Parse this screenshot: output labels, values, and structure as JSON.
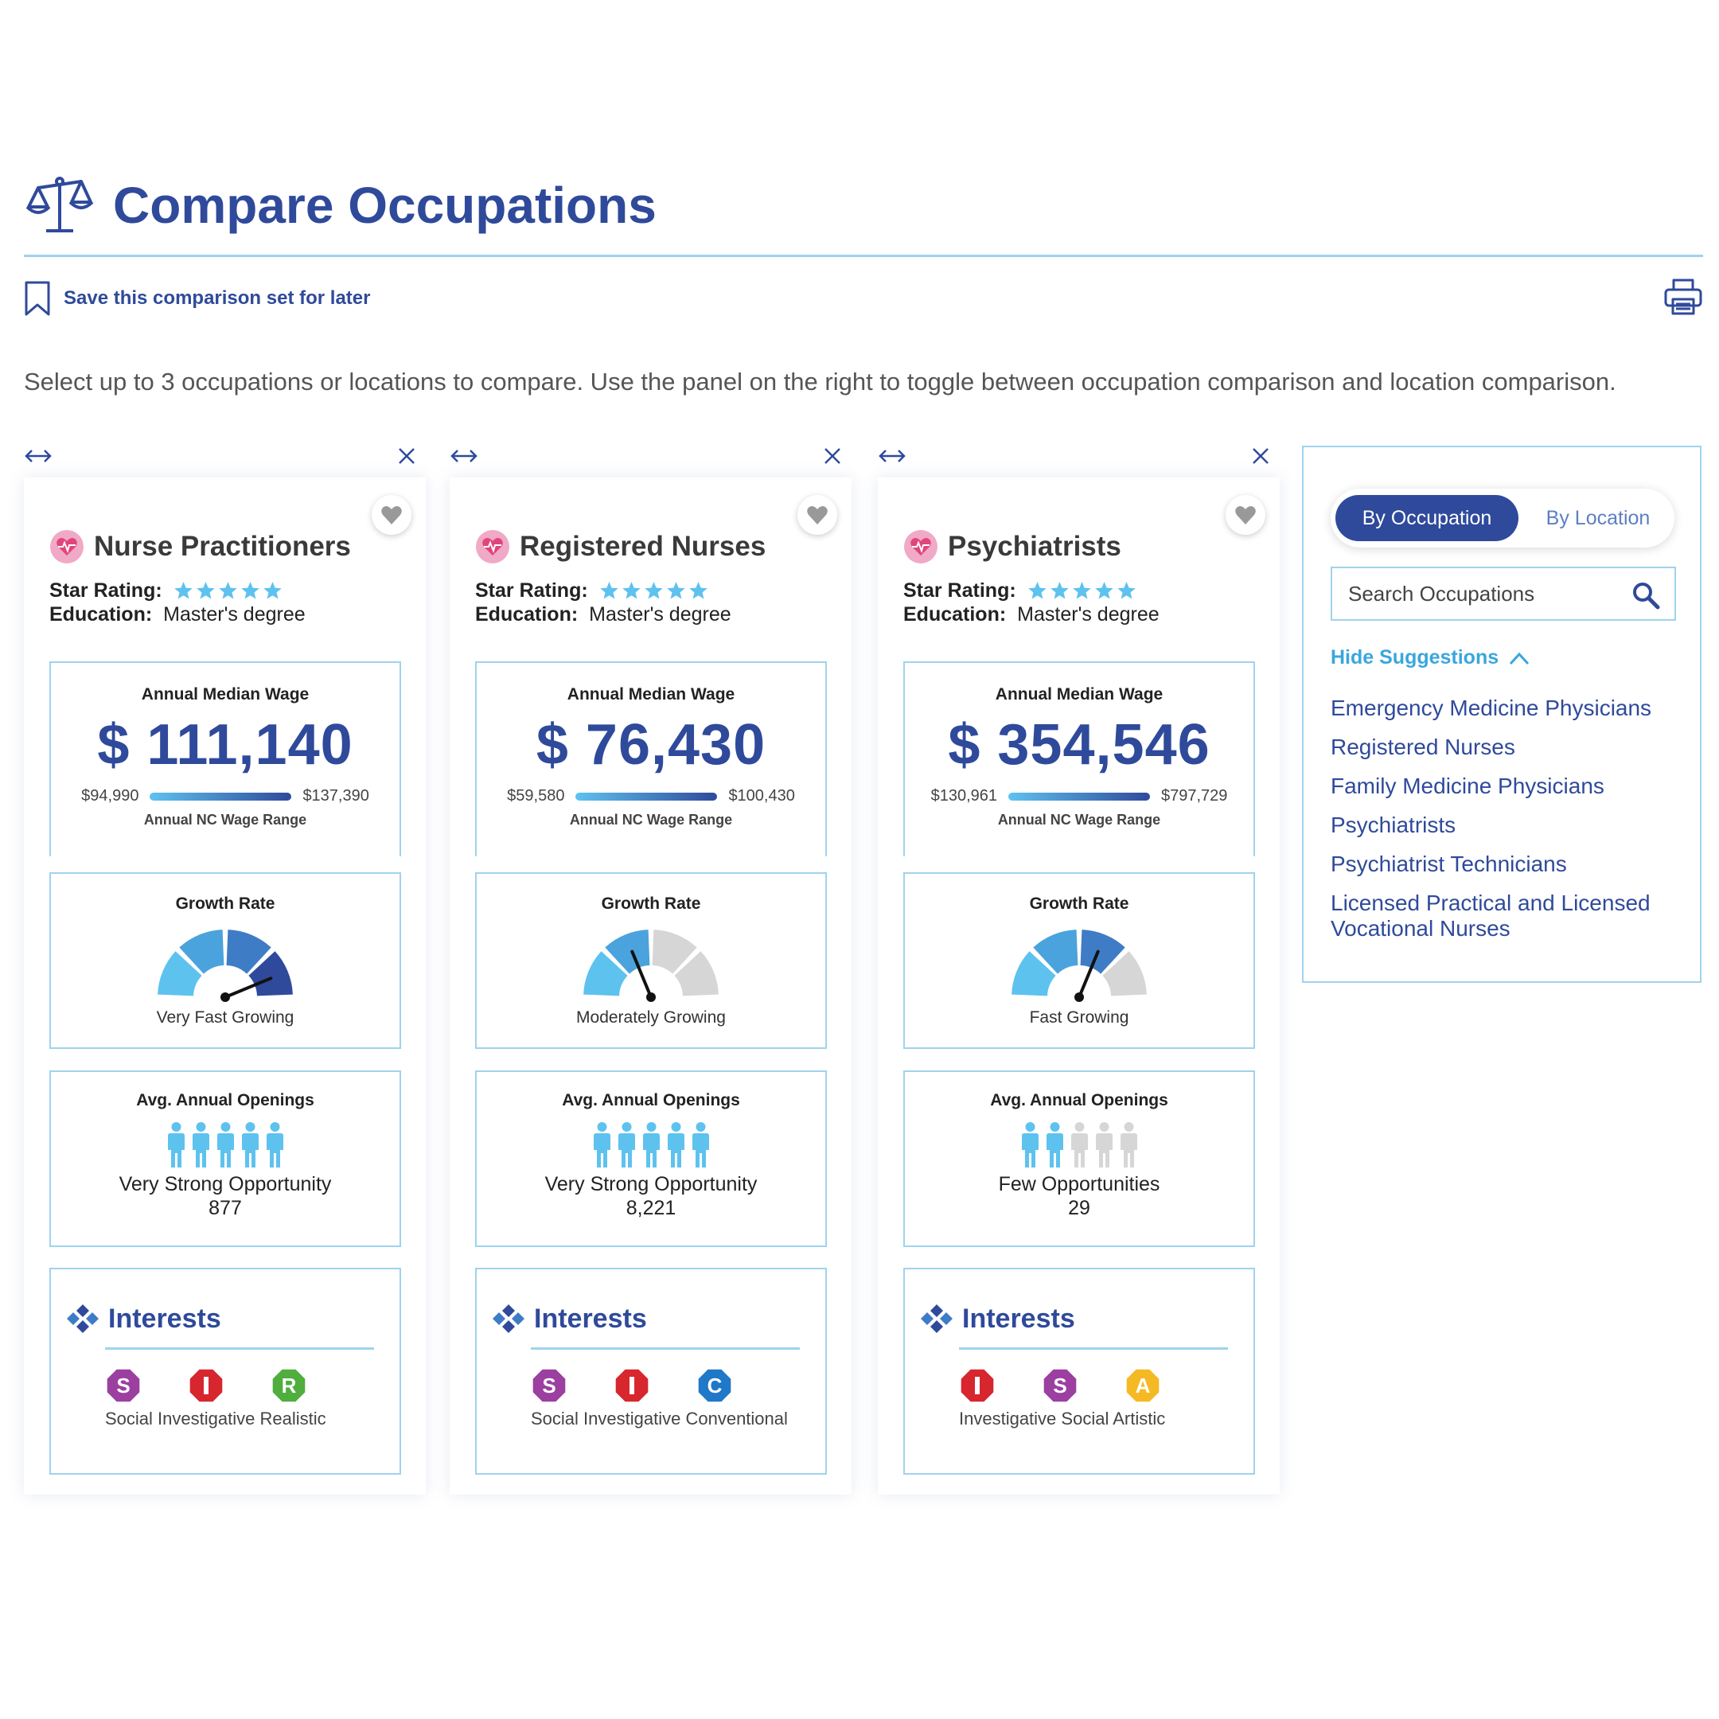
{
  "page": {
    "title": "Compare Occupations",
    "save_label": "Save this comparison set for later",
    "intro": "Select up to 3 occupations or locations to compare. Use the panel on the right to toggle between occupation comparison and location comparison."
  },
  "colors": {
    "accent": "#2f4a9b",
    "light_border": "#9fd3ec",
    "sky": "#5ec2ef",
    "link": "#3aa6dd"
  },
  "occupations": [
    {
      "name": "Nurse Practitioners",
      "star_label": "Star Rating:",
      "stars": 5,
      "education_label": "Education:",
      "education": "Master's degree",
      "wage_label": "Annual Median Wage",
      "wage": "$ 111,140",
      "wage_min": "$94,990",
      "wage_max": "$137,390",
      "wage_range_label": "Annual NC Wage Range",
      "growth_label": "Growth Rate",
      "growth": "Very Fast Growing",
      "growth_level": 4,
      "openings_label": "Avg. Annual Openings",
      "openings_level": 5,
      "openings_text": "Very Strong Opportunity",
      "openings_count": "877",
      "interests_title": "Interests",
      "interests": [
        {
          "letter": "S",
          "name": "Social",
          "color": "#9b3fa1"
        },
        {
          "letter": "I",
          "name": "Investigative",
          "color": "#d7262e"
        },
        {
          "letter": "R",
          "name": "Realistic",
          "color": "#4fae3e"
        }
      ]
    },
    {
      "name": "Registered Nurses",
      "star_label": "Star Rating:",
      "stars": 5,
      "education_label": "Education:",
      "education": "Master's degree",
      "wage_label": "Annual Median Wage",
      "wage": "$ 76,430",
      "wage_min": "$59,580",
      "wage_max": "$100,430",
      "wage_range_label": "Annual NC Wage Range",
      "growth_label": "Growth Rate",
      "growth": "Moderately Growing",
      "growth_level": 2,
      "openings_label": "Avg. Annual Openings",
      "openings_level": 5,
      "openings_text": "Very Strong Opportunity",
      "openings_count": "8,221",
      "interests_title": "Interests",
      "interests": [
        {
          "letter": "S",
          "name": "Social",
          "color": "#9b3fa1"
        },
        {
          "letter": "I",
          "name": "Investigative",
          "color": "#d7262e"
        },
        {
          "letter": "C",
          "name": "Conventional",
          "color": "#1f78c8"
        }
      ]
    },
    {
      "name": "Psychiatrists",
      "star_label": "Star Rating:",
      "stars": 5,
      "education_label": "Education:",
      "education": "Master's degree",
      "wage_label": "Annual Median Wage",
      "wage": "$ 354,546",
      "wage_min": "$130,961",
      "wage_max": "$797,729",
      "wage_range_label": "Annual NC Wage Range",
      "growth_label": "Growth Rate",
      "growth": "Fast Growing",
      "growth_level": 3,
      "openings_label": "Avg. Annual Openings",
      "openings_level": 2,
      "openings_text": "Few Opportunities",
      "openings_count": "29",
      "interests_title": "Interests",
      "interests": [
        {
          "letter": "I",
          "name": "Investigative",
          "color": "#d7262e"
        },
        {
          "letter": "S",
          "name": "Social",
          "color": "#9b3fa1"
        },
        {
          "letter": "A",
          "name": "Artistic",
          "color": "#f5b924"
        }
      ]
    }
  ],
  "panel": {
    "toggle_active": "By Occupation",
    "toggle_inactive": "By Location",
    "search_placeholder": "Search Occupations",
    "hide_suggestions": "Hide Suggestions",
    "suggestions": [
      "Emergency Medicine Physicians",
      "Registered Nurses",
      "Family Medicine Physicians",
      "Psychiatrists",
      "Psychiatrist Technicians",
      "Licensed Practical and Licensed Vocational Nurses"
    ]
  },
  "icons": [
    "scales-icon",
    "bookmark-icon",
    "printer-icon",
    "move-arrows-icon",
    "close-icon",
    "heart-icon",
    "health-icon",
    "star-icon",
    "person-icon",
    "interests-icon",
    "search-icon",
    "chevron-up-icon"
  ]
}
